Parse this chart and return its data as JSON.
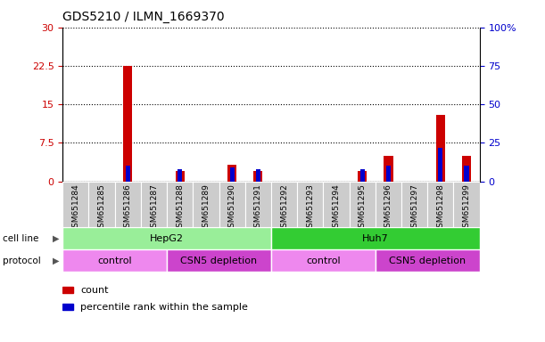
{
  "title": "GDS5210 / ILMN_1669370",
  "samples": [
    "GSM651284",
    "GSM651285",
    "GSM651286",
    "GSM651287",
    "GSM651288",
    "GSM651289",
    "GSM651290",
    "GSM651291",
    "GSM651292",
    "GSM651293",
    "GSM651294",
    "GSM651295",
    "GSM651296",
    "GSM651297",
    "GSM651298",
    "GSM651299"
  ],
  "count_values": [
    0,
    0,
    22.5,
    0,
    2,
    0,
    3.2,
    2,
    0,
    0,
    0,
    2,
    5,
    0,
    13,
    5
  ],
  "percentile_values": [
    0,
    0,
    10,
    0,
    8,
    0,
    9,
    8,
    0,
    0,
    0,
    8,
    10,
    0,
    22,
    10
  ],
  "count_color": "#cc0000",
  "percentile_color": "#0000cc",
  "left_ylim": [
    0,
    30
  ],
  "right_ylim": [
    0,
    100
  ],
  "left_yticks": [
    0,
    7.5,
    15,
    22.5,
    30
  ],
  "left_yticklabels": [
    "0",
    "7.5",
    "15",
    "22.5",
    "30"
  ],
  "right_yticks": [
    0,
    25,
    50,
    75,
    100
  ],
  "right_yticklabels": [
    "0",
    "25",
    "50",
    "75",
    "100%"
  ],
  "cell_line_groups": [
    {
      "label": "HepG2",
      "start": 0,
      "end": 7,
      "color": "#99ee99"
    },
    {
      "label": "Huh7",
      "start": 8,
      "end": 15,
      "color": "#33cc33"
    }
  ],
  "protocol_groups": [
    {
      "label": "control",
      "start": 0,
      "end": 3,
      "color": "#ee88ee"
    },
    {
      "label": "CSN5 depletion",
      "start": 4,
      "end": 7,
      "color": "#cc44cc"
    },
    {
      "label": "control",
      "start": 8,
      "end": 11,
      "color": "#ee88ee"
    },
    {
      "label": "CSN5 depletion",
      "start": 12,
      "end": 15,
      "color": "#cc44cc"
    }
  ],
  "cell_line_label": "cell line",
  "protocol_label": "protocol",
  "legend_count": "count",
  "legend_percentile": "percentile rank within the sample",
  "bar_width": 0.35,
  "pct_bar_width": 0.18,
  "grid_color": "#000000",
  "xtick_bg_color": "#cccccc",
  "plot_bg_color": "#ffffff"
}
